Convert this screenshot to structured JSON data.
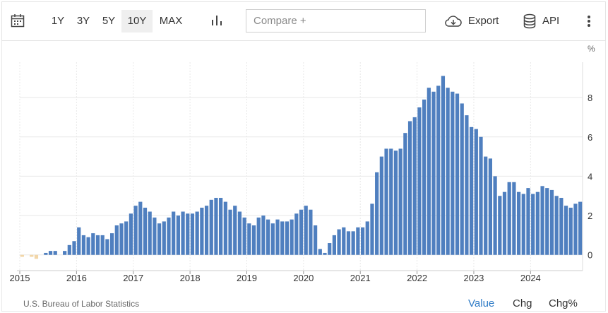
{
  "toolbar": {
    "ranges": [
      {
        "label": "1Y"
      },
      {
        "label": "3Y"
      },
      {
        "label": "5Y"
      },
      {
        "label": "10Y"
      },
      {
        "label": "MAX"
      }
    ],
    "active_range": "10Y",
    "compare_placeholder": "Compare +",
    "export_label": "Export",
    "api_label": "API"
  },
  "footer": {
    "source": "U.S. Bureau of Labor Statistics",
    "modes": [
      "Value",
      "Chg",
      "Chg%"
    ],
    "active_mode": "Value"
  },
  "colors": {
    "bar_positive": "#4f7fbf",
    "bar_negative": "#f2d6a8",
    "active_mode": "#2e7bc6",
    "grid": "#e8e8e8"
  },
  "chart_data": {
    "type": "bar",
    "unit_label": "%",
    "x_tick_labels": [
      "2015",
      "2016",
      "2017",
      "2018",
      "2019",
      "2020",
      "2021",
      "2022",
      "2023",
      "2024"
    ],
    "y_ticks": [
      0,
      2,
      4,
      6,
      8
    ],
    "ylim": [
      -0.8,
      9.8
    ],
    "grid": true,
    "start_month": "2015-01",
    "values": [
      -0.1,
      0.0,
      -0.1,
      -0.2,
      0.0,
      0.1,
      0.2,
      0.2,
      0.0,
      0.2,
      0.5,
      0.7,
      1.4,
      1.0,
      0.9,
      1.1,
      1.0,
      1.0,
      0.8,
      1.1,
      1.5,
      1.6,
      1.7,
      2.1,
      2.5,
      2.7,
      2.4,
      2.2,
      1.9,
      1.6,
      1.7,
      1.9,
      2.2,
      2.0,
      2.2,
      2.1,
      2.1,
      2.2,
      2.4,
      2.5,
      2.8,
      2.9,
      2.9,
      2.7,
      2.3,
      2.5,
      2.2,
      1.9,
      1.6,
      1.5,
      1.9,
      2.0,
      1.8,
      1.6,
      1.8,
      1.7,
      1.7,
      1.8,
      2.1,
      2.3,
      2.5,
      2.3,
      1.5,
      0.3,
      0.1,
      0.6,
      1.0,
      1.3,
      1.4,
      1.2,
      1.2,
      1.4,
      1.4,
      1.7,
      2.6,
      4.2,
      5.0,
      5.4,
      5.4,
      5.3,
      5.4,
      6.2,
      6.8,
      7.0,
      7.5,
      7.9,
      8.5,
      8.3,
      8.6,
      9.1,
      8.5,
      8.3,
      8.2,
      7.7,
      7.1,
      6.5,
      6.4,
      6.0,
      5.0,
      4.9,
      4.0,
      3.0,
      3.2,
      3.7,
      3.7,
      3.2,
      3.1,
      3.4,
      3.1,
      3.2,
      3.5,
      3.4,
      3.3,
      3.0,
      2.9,
      2.5,
      2.4,
      2.6,
      2.7
    ]
  }
}
